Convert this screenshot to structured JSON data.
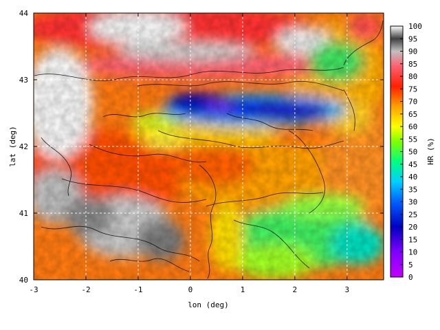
{
  "map": {
    "xlabel": "lon (deg)",
    "ylabel": "lat (deg)",
    "x_range": [
      -3,
      3.7
    ],
    "y_range": [
      40,
      44
    ],
    "x_ticks": [
      "-3",
      "-2",
      "-1",
      "0",
      "1",
      "2",
      "3"
    ],
    "x_tick_values": [
      -3,
      -2,
      -1,
      0,
      1,
      2,
      3
    ],
    "y_ticks": [
      "40",
      "41",
      "42",
      "43",
      "44"
    ],
    "y_tick_values": [
      40,
      41,
      42,
      43,
      44
    ],
    "grid": true,
    "grid_style": "dashed white"
  },
  "colorbar": {
    "label": "HR (%)",
    "range": [
      0,
      100
    ],
    "ticks": [
      "100",
      "95",
      "90",
      "85",
      "80",
      "75",
      "70",
      "65",
      "60",
      "55",
      "50",
      "45",
      "40",
      "35",
      "30",
      "25",
      "20",
      "15",
      "10",
      "5",
      "0"
    ],
    "tick_values": [
      100,
      95,
      90,
      85,
      80,
      75,
      70,
      65,
      60,
      55,
      50,
      45,
      40,
      35,
      30,
      25,
      20,
      15,
      10,
      5,
      0
    ],
    "colors": [
      "#c000ff",
      "#4000c0",
      "#0000ff",
      "#00c0ff",
      "#00ff80",
      "#c0ff00",
      "#ffff00",
      "#ffc000",
      "#ff8000",
      "#ff0000",
      "#ff6060",
      "#c0c0c0",
      "#404040",
      "#ffffff"
    ]
  }
}
